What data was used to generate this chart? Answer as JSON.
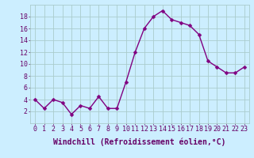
{
  "x": [
    0,
    1,
    2,
    3,
    4,
    5,
    6,
    7,
    8,
    9,
    10,
    11,
    12,
    13,
    14,
    15,
    16,
    17,
    18,
    19,
    20,
    21,
    22,
    23
  ],
  "y": [
    4,
    2.5,
    4,
    3.5,
    1.5,
    3,
    2.5,
    4.5,
    2.5,
    2.5,
    7,
    12,
    16,
    18,
    19,
    17.5,
    17,
    16.5,
    15,
    10.5,
    9.5,
    8.5,
    8.5,
    9.5
  ],
  "line_color": "#800080",
  "marker_color": "#800080",
  "bg_color": "#cceeff",
  "grid_color": "#aacccc",
  "xlabel": "Windchill (Refroidissement éolien,°C)",
  "ylabel": "",
  "xlim": [
    -0.5,
    23.5
  ],
  "ylim": [
    0,
    20
  ],
  "yticks": [
    2,
    4,
    6,
    8,
    10,
    12,
    14,
    16,
    18
  ],
  "xticks": [
    0,
    1,
    2,
    3,
    4,
    5,
    6,
    7,
    8,
    9,
    10,
    11,
    12,
    13,
    14,
    15,
    16,
    17,
    18,
    19,
    20,
    21,
    22,
    23
  ],
  "tick_label_fontsize": 6.0,
  "xlabel_fontsize": 7.0,
  "marker_size": 2.5,
  "line_width": 1.0
}
